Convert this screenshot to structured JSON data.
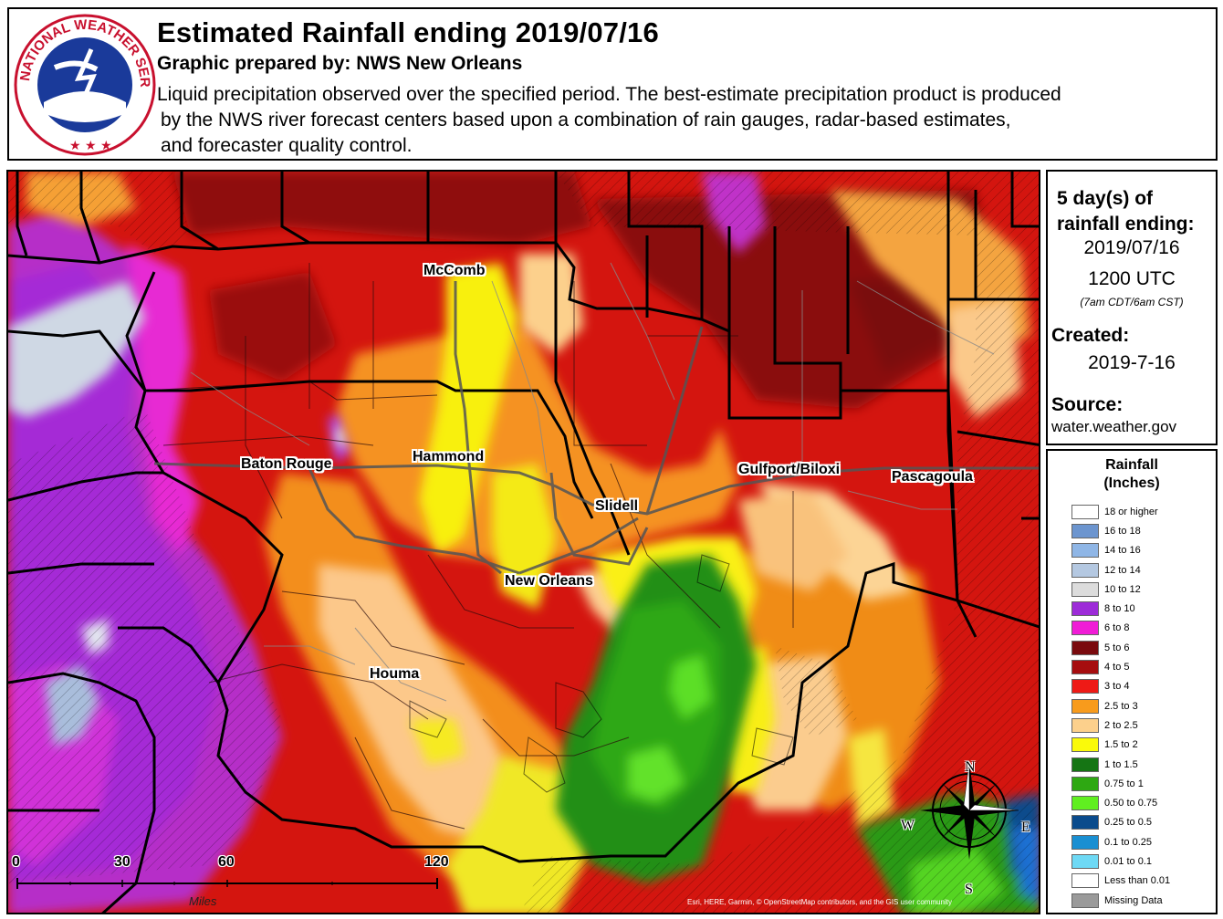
{
  "header": {
    "title": "Estimated Rainfall ending 2019/07/16",
    "subtitle": "Graphic prepared by: NWS New Orleans",
    "description_lines": [
      "Liquid precipitation observed over the specified period.  The best-estimate precipitation product is produced",
      "by the NWS river forecast centers based upon a combination of rain gauges, radar-based estimates,",
      "and forecaster quality control."
    ],
    "logo_text": "NATIONAL WEATHER SERVICE"
  },
  "info": {
    "period_line1": "5 day(s) of",
    "period_line2": "rainfall ending:",
    "end_date": "2019/07/16",
    "end_time": "1200 UTC",
    "local_time": "(7am CDT/6am CST)",
    "created_label": "Created:",
    "created_date": "2019-7-16",
    "source_label": "Source:",
    "source": "water.weather.gov"
  },
  "legend": {
    "title_line1": "Rainfall",
    "title_line2": "(Inches)",
    "items": [
      {
        "label": "18 or higher",
        "color": "#ffffff"
      },
      {
        "label": "16 to 18",
        "color": "#6c95cf"
      },
      {
        "label": "14 to 16",
        "color": "#8fb6e6"
      },
      {
        "label": "12 to 14",
        "color": "#b4c8e1"
      },
      {
        "label": "10 to 12",
        "color": "#dcdcdc"
      },
      {
        "label": "8 to 10",
        "color": "#9d2bd8"
      },
      {
        "label": "6 to 8",
        "color": "#f01cd6"
      },
      {
        "label": "5 to 6",
        "color": "#7a0a0e"
      },
      {
        "label": "4 to 5",
        "color": "#a60d0f"
      },
      {
        "label": "3 to 4",
        "color": "#ee1a16"
      },
      {
        "label": "2.5 to 3",
        "color": "#f89b1c"
      },
      {
        "label": "2 to 2.5",
        "color": "#fcd08c"
      },
      {
        "label": "1.5 to 2",
        "color": "#fafa0a"
      },
      {
        "label": "1 to 1.5",
        "color": "#157514"
      },
      {
        "label": "0.75 to 1",
        "color": "#2ea812"
      },
      {
        "label": "0.50 to 0.75",
        "color": "#60ef20"
      },
      {
        "label": "0.25 to 0.5",
        "color": "#0a4b8c"
      },
      {
        "label": "0.1 to 0.25",
        "color": "#1a8fd2"
      },
      {
        "label": "0.01 to 0.1",
        "color": "#6ed9f5"
      },
      {
        "label": "Less than 0.01",
        "color": "#ffffff"
      },
      {
        "label": "Missing Data",
        "color": "#9a9a9a"
      }
    ]
  },
  "map": {
    "cities": [
      {
        "name": "McComb"
      },
      {
        "name": "Hammond"
      },
      {
        "name": "Baton Rouge"
      },
      {
        "name": "Slidell"
      },
      {
        "name": "Gulfport/Biloxi"
      },
      {
        "name": "Pascagoula"
      },
      {
        "name": "New Orleans"
      },
      {
        "name": "Houma"
      }
    ],
    "scale_labels": [
      "0",
      "30",
      "60",
      "120"
    ],
    "scale_units": "Miles",
    "compass": {
      "n": "N",
      "s": "S",
      "e": "E",
      "w": "W"
    },
    "attribution": "Esri, HERE, Garmin, © OpenStreetMap contributors, and the GIS user community"
  }
}
